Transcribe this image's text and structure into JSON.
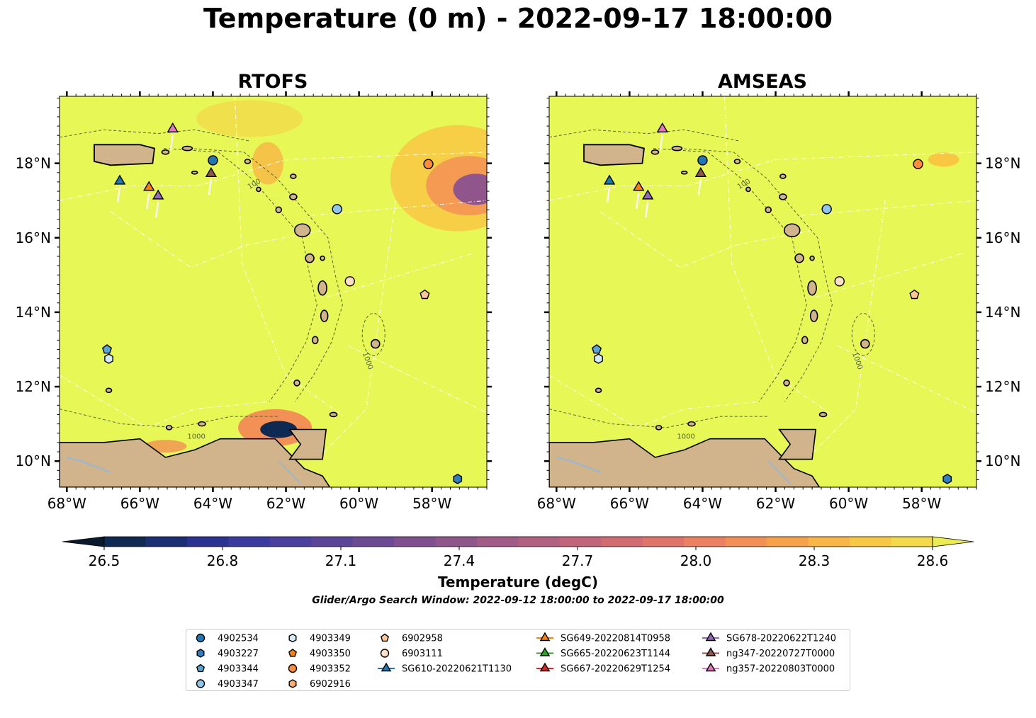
{
  "figure": {
    "title": "Temperature (0 m) - 2022-09-17 18:00:00",
    "search_window": "Glider/Argo Search Window: 2022-09-12 18:00:00 to 2022-09-17 18:00:00"
  },
  "colors": {
    "land": "#d1b48c",
    "field": "#e7f756",
    "river": "#9fb6cc",
    "colormap": [
      "#0a1a2c",
      "#0f2a52",
      "#1d2f74",
      "#2a3391",
      "#3a3aa0",
      "#4b3f9f",
      "#5c4499",
      "#6d4a94",
      "#7f5090",
      "#90568b",
      "#a25b86",
      "#b26080",
      "#c2657a",
      "#d26b72",
      "#e0746a",
      "#eb8160",
      "#f39055",
      "#f7a24b",
      "#f9b545",
      "#f8c843",
      "#f3da48",
      "#ebec50"
    ]
  },
  "colorbar": {
    "label": "Temperature (degC)",
    "ticks": [
      26.5,
      26.8,
      27.1,
      27.4,
      27.7,
      28.0,
      28.3,
      28.6
    ],
    "tick_labels": [
      "26.5",
      "26.8",
      "27.1",
      "27.4",
      "27.7",
      "28.0",
      "28.3",
      "28.6"
    ],
    "range": [
      26.5,
      28.6
    ],
    "extend": "both"
  },
  "chart_data": {
    "type": "map-contour",
    "panels": [
      {
        "title": "RTOFS",
        "y_labels_side": "left"
      },
      {
        "title": "AMSEAS",
        "y_labels_side": "right"
      }
    ],
    "xlim": [
      -68.2,
      -56.5
    ],
    "ylim": [
      9.3,
      19.8
    ],
    "x_ticks": [
      -68,
      -66,
      -64,
      -62,
      -60,
      -58
    ],
    "x_tick_labels": [
      "68°W",
      "66°W",
      "64°W",
      "62°W",
      "60°W",
      "58°W"
    ],
    "y_ticks": [
      10,
      12,
      14,
      16,
      18
    ],
    "y_tick_labels": [
      "10°N",
      "12°N",
      "14°N",
      "16°N",
      "18°N"
    ],
    "bathymetry_contour_labels": [
      "100",
      "1000"
    ],
    "argo_floats": [
      {
        "id": "4902534",
        "lon": -64.0,
        "lat": 18.08,
        "marker": "circle",
        "color": "#1f77b4"
      },
      {
        "id": "4903227",
        "lon": -57.3,
        "lat": 9.52,
        "marker": "hexagon",
        "color": "#2f7fbf"
      },
      {
        "id": "4903344",
        "lon": -66.9,
        "lat": 13.0,
        "marker": "pentagon",
        "color": "#5aa5d8"
      },
      {
        "id": "4903347",
        "lon": -60.6,
        "lat": 16.77,
        "marker": "circle",
        "color": "#8ec6ec"
      },
      {
        "id": "4903349",
        "lon": -66.85,
        "lat": 12.75,
        "marker": "hexagon",
        "color": "#d3ebfb"
      },
      {
        "id": "4903350",
        "lon": null,
        "lat": null,
        "marker": "pentagon",
        "color": "#ff7f0e"
      },
      {
        "id": "4903352",
        "lon": -58.1,
        "lat": 17.98,
        "marker": "circle",
        "color": "#fd8d3c"
      },
      {
        "id": "6902916",
        "lon": null,
        "lat": null,
        "marker": "hexagon",
        "color": "#fdae6b"
      },
      {
        "id": "6902958",
        "lon": -58.2,
        "lat": 14.47,
        "marker": "pentagon",
        "color": "#fdc79a"
      },
      {
        "id": "6903111",
        "lon": -60.25,
        "lat": 14.83,
        "marker": "circle",
        "color": "#fde0c5"
      }
    ],
    "gliders": [
      {
        "id": "SG610-20220621T1130",
        "lon": -66.55,
        "lat": 17.52,
        "color": "#1f77b4"
      },
      {
        "id": "SG649-20220814T0958",
        "lon": -65.75,
        "lat": 17.35,
        "color": "#ff7f0e"
      },
      {
        "id": "SG665-20220623T1144",
        "lon": null,
        "lat": null,
        "color": "#2ca02c"
      },
      {
        "id": "SG667-20220629T1254",
        "lon": null,
        "lat": null,
        "color": "#d62728"
      },
      {
        "id": "SG678-20220622T1240",
        "lon": -65.5,
        "lat": 17.12,
        "color": "#9467bd"
      },
      {
        "id": "ng347-20220727T0000",
        "lon": -64.05,
        "lat": 17.72,
        "color": "#8c564b"
      },
      {
        "id": "ng357-20220803T0000",
        "lon": -65.1,
        "lat": 18.92,
        "color": "#e377c2"
      }
    ]
  }
}
